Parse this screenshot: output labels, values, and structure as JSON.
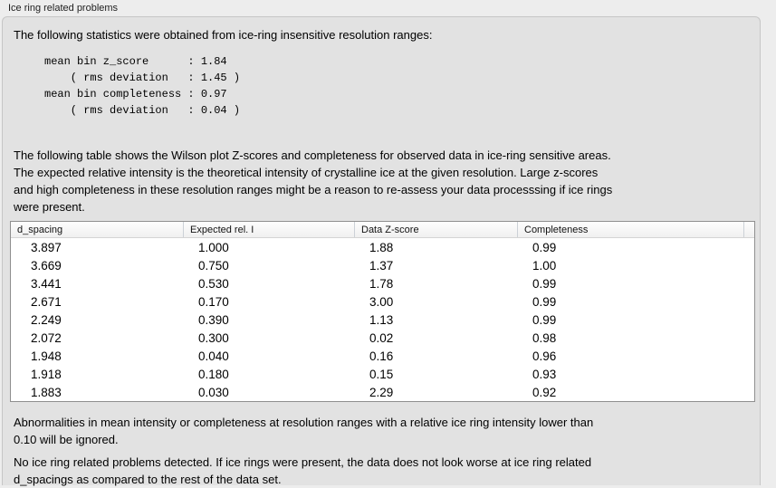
{
  "window": {
    "section_title": "Ice ring related problems"
  },
  "stats": {
    "intro": "The following statistics were obtained from ice-ring insensitive resolution ranges:",
    "block": "mean bin z_score      : 1.84\n    ( rms deviation   : 1.45 )\nmean bin completeness : 0.97\n    ( rms deviation   : 0.04 )",
    "mean_bin_z_score": "1.84",
    "z_score_rms_deviation": "1.45",
    "mean_bin_completeness": "0.97",
    "completeness_rms_deviation": "0.04"
  },
  "table_description": "The following table shows the Wilson plot Z-scores and completeness for observed data in ice-ring sensitive areas.\nThe expected relative intensity is the theoretical intensity of crystalline ice at the given resolution. Large z-scores\nand high completeness in these resolution ranges might be a reason to re-assess your data processsing if ice rings\nwere present.",
  "table": {
    "columns": [
      "d_spacing",
      "Expected rel. I",
      "Data Z-score",
      "Completeness"
    ],
    "rows": [
      [
        "3.897",
        "1.000",
        "1.88",
        "0.99"
      ],
      [
        "3.669",
        "0.750",
        "1.37",
        "1.00"
      ],
      [
        "3.441",
        "0.530",
        "1.78",
        "0.99"
      ],
      [
        "2.671",
        "0.170",
        "3.00",
        "0.99"
      ],
      [
        "2.249",
        "0.390",
        "1.13",
        "0.99"
      ],
      [
        "2.072",
        "0.300",
        "0.02",
        "0.98"
      ],
      [
        "1.948",
        "0.040",
        "0.16",
        "0.96"
      ],
      [
        "1.918",
        "0.180",
        "0.15",
        "0.93"
      ],
      [
        "1.883",
        "0.030",
        "2.29",
        "0.92"
      ]
    ]
  },
  "notes": {
    "ignore_threshold": "Abnormalities in mean intensity or completeness at resolution ranges with a relative ice ring intensity lower than\n0.10 will be ignored.",
    "conclusion": "No ice ring related problems detected. If ice rings were present, the data does not look worse at ice ring related\nd_spacings as compared to the rest of the data set."
  },
  "colors": {
    "page_background": "#ededed",
    "panel_background": "#e2e2e2",
    "panel_border": "#c6c6c6",
    "table_border": "#8f8f8f",
    "table_background": "#ffffff",
    "table_header_background": "#f4f4f4",
    "text": "#000000"
  }
}
